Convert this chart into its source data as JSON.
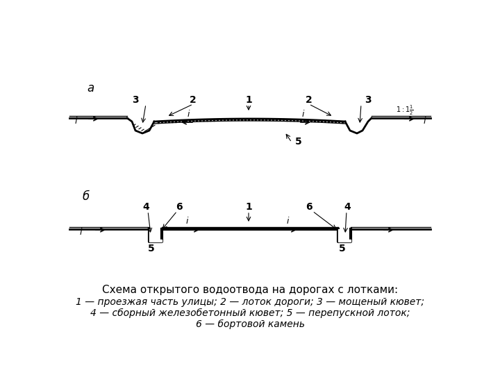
{
  "bg_color": "#ffffff",
  "line_color": "#000000",
  "title_line1": "Схема открытого водоотвода на дорогах с лотками:",
  "title_line2": "1 — проезжая часть улицы; 2 — лоток дороги; 3 — мощеный кювет;",
  "title_line3": "4 — сборный железобетонный кювет; 5 — перепускной лоток;",
  "title_line4": "6 — бортовой камень",
  "label_a": "а",
  "label_b": "б",
  "font_size_title": 11,
  "font_size_labels": 11
}
